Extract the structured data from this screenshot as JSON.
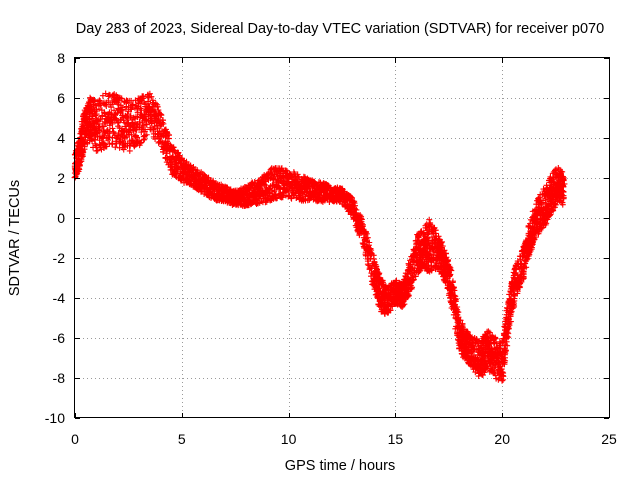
{
  "chart_data": {
    "type": "scatter",
    "title": "Day 283 of 2023, Sidereal Day-to-day VTEC variation (SDTVAR) for receiver p070",
    "xlabel": "GPS time / hours",
    "ylabel": "SDTVAR / TECUs",
    "xlim": [
      0,
      25
    ],
    "ylim": [
      -10,
      8
    ],
    "xticks": [
      "0",
      "5",
      "10",
      "15",
      "20",
      "25"
    ],
    "yticks": [
      "-10",
      "-8",
      "-6",
      "-4",
      "-2",
      "0",
      "2",
      "4",
      "6",
      "8"
    ],
    "grid": true,
    "marker": "plus",
    "color": "#ff0000",
    "series": [
      {
        "name": "SDTVAR",
        "x": [
          0.0,
          0.2,
          0.4,
          0.7,
          1.0,
          1.5,
          2.0,
          2.5,
          3.0,
          3.5,
          4.0,
          4.5,
          5.0,
          5.5,
          6.0,
          6.5,
          7.0,
          7.5,
          8.0,
          8.5,
          9.0,
          9.5,
          10.0,
          10.5,
          11.0,
          11.5,
          12.0,
          12.5,
          13.0,
          13.5,
          14.0,
          14.3,
          14.6,
          15.0,
          15.3,
          15.6,
          16.0,
          16.3,
          16.6,
          17.0,
          17.3,
          17.6,
          18.0,
          18.3,
          18.6,
          19.0,
          19.3,
          19.6,
          20.0,
          20.3,
          20.6,
          21.0,
          21.3,
          21.6,
          22.0,
          22.3,
          22.6,
          22.9
        ],
        "y": [
          2.6,
          3.2,
          4.3,
          5.0,
          4.5,
          5.0,
          4.8,
          4.6,
          4.8,
          5.3,
          4.5,
          3.0,
          2.4,
          2.1,
          1.7,
          1.4,
          1.2,
          1.0,
          1.1,
          1.3,
          1.6,
          1.8,
          1.7,
          1.5,
          1.4,
          1.3,
          1.2,
          1.1,
          0.5,
          -0.8,
          -2.8,
          -3.8,
          -4.2,
          -3.7,
          -3.9,
          -3.2,
          -1.8,
          -1.6,
          -1.3,
          -1.7,
          -2.3,
          -3.4,
          -5.8,
          -6.4,
          -6.7,
          -7.1,
          -6.6,
          -6.9,
          -7.3,
          -4.8,
          -3.3,
          -2.2,
          -1.0,
          0.0,
          0.6,
          1.2,
          1.7,
          1.4
        ],
        "spread": [
          0.6,
          0.8,
          1.0,
          1.1,
          1.3,
          1.4,
          1.3,
          1.3,
          1.2,
          1.0,
          0.9,
          0.8,
          0.6,
          0.5,
          0.5,
          0.5,
          0.4,
          0.4,
          0.5,
          0.6,
          0.8,
          0.8,
          0.7,
          0.7,
          0.5,
          0.5,
          0.4,
          0.4,
          0.5,
          0.6,
          0.8,
          0.9,
          0.7,
          0.6,
          0.6,
          0.8,
          1.0,
          1.0,
          1.4,
          0.9,
          0.8,
          0.8,
          0.8,
          0.8,
          0.8,
          0.9,
          1.0,
          1.0,
          1.0,
          0.8,
          0.8,
          0.8,
          0.8,
          0.9,
          1.0,
          1.0,
          0.9,
          0.8
        ]
      }
    ]
  }
}
